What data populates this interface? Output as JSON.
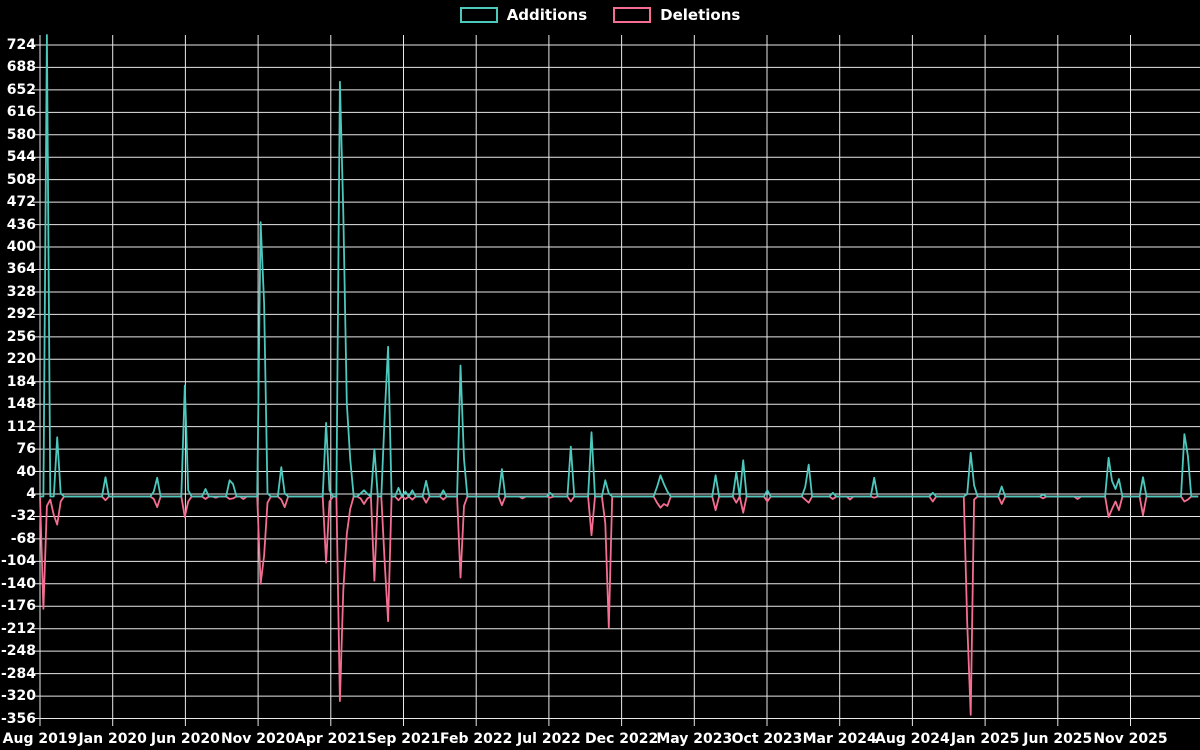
{
  "legend": {
    "additions_label": "Additions",
    "deletions_label": "Deletions"
  },
  "colors": {
    "background": "#000000",
    "text": "#ffffff",
    "grid": "#e8e8e8",
    "additions": "#4cc8bd",
    "deletions": "#f56e91"
  },
  "chart_data": {
    "type": "line",
    "title": "",
    "xlabel": "",
    "ylabel": "",
    "legend_position": "top-center",
    "grid": true,
    "x_tick_labels": [
      "Aug 2019",
      "Jan 2020",
      "Jun 2020",
      "Nov 2020",
      "Apr 2021",
      "Sep 2021",
      "Feb 2022",
      "Jul 2022",
      "Dec 2022",
      "May 2023",
      "Oct 2023",
      "Mar 2024",
      "Aug 2024",
      "Jan 2025",
      "Jun 2025",
      "Nov 2025"
    ],
    "y_ticks": [
      724,
      688,
      652,
      616,
      580,
      544,
      508,
      472,
      436,
      400,
      364,
      328,
      292,
      256,
      220,
      184,
      148,
      112,
      76,
      40,
      4,
      -32,
      -68,
      -104,
      -140,
      -176,
      -212,
      -248,
      -284,
      -320,
      -356
    ],
    "y_axis_range": [
      -368,
      740
    ],
    "series": [
      {
        "name": "Additions",
        "color": "#4cc8bd"
      },
      {
        "name": "Deletions",
        "color": "#f56e91"
      }
    ],
    "total_weeks": 337,
    "weeks_are": "weekly points from Aug 2019; unlisted weeks are [additions=0, deletions=0]",
    "points_w_add_del": [
      [
        1,
        0,
        -180
      ],
      [
        2,
        740,
        -15
      ],
      [
        3,
        0,
        -5
      ],
      [
        4,
        0,
        -30
      ],
      [
        5,
        95,
        -45
      ],
      [
        6,
        5,
        -8
      ],
      [
        19,
        31,
        -6
      ],
      [
        33,
        8,
        -4
      ],
      [
        34,
        30,
        -17
      ],
      [
        42,
        178,
        -33
      ],
      [
        43,
        10,
        -8
      ],
      [
        48,
        12,
        -4
      ],
      [
        51,
        0,
        -2
      ],
      [
        55,
        26,
        -4
      ],
      [
        56,
        20,
        -3
      ],
      [
        59,
        0,
        -4
      ],
      [
        64,
        440,
        -140
      ],
      [
        65,
        310,
        -95
      ],
      [
        66,
        5,
        -10
      ],
      [
        70,
        47,
        -5
      ],
      [
        71,
        5,
        -17
      ],
      [
        83,
        118,
        -106
      ],
      [
        84,
        10,
        -8
      ],
      [
        87,
        665,
        -328
      ],
      [
        88,
        455,
        -150
      ],
      [
        89,
        150,
        -60
      ],
      [
        90,
        60,
        -20
      ],
      [
        93,
        5,
        -3
      ],
      [
        94,
        10,
        -12
      ],
      [
        95,
        4,
        -3
      ],
      [
        97,
        76,
        -135
      ],
      [
        100,
        130,
        -106
      ],
      [
        101,
        240,
        -200
      ],
      [
        104,
        14,
        -6
      ],
      [
        106,
        8,
        -4
      ],
      [
        108,
        10,
        -5
      ],
      [
        112,
        25,
        -10
      ],
      [
        117,
        10,
        -5
      ],
      [
        122,
        210,
        -130
      ],
      [
        123,
        60,
        -15
      ],
      [
        134,
        44,
        -14
      ],
      [
        140,
        0,
        -3
      ],
      [
        148,
        6,
        -2
      ],
      [
        154,
        80,
        -8
      ],
      [
        160,
        103,
        -62
      ],
      [
        164,
        26,
        -43
      ],
      [
        165,
        5,
        -210
      ],
      [
        179,
        15,
        -10
      ],
      [
        180,
        34,
        -18
      ],
      [
        181,
        20,
        -12
      ],
      [
        182,
        8,
        -15
      ],
      [
        196,
        34,
        -22
      ],
      [
        202,
        39,
        -10
      ],
      [
        204,
        58,
        -26
      ],
      [
        211,
        10,
        -8
      ],
      [
        222,
        15,
        -5
      ],
      [
        223,
        51,
        -10
      ],
      [
        230,
        6,
        -4
      ],
      [
        235,
        0,
        -5
      ],
      [
        242,
        30,
        -2
      ],
      [
        259,
        6,
        -8
      ],
      [
        269,
        4,
        -202
      ],
      [
        270,
        70,
        -350
      ],
      [
        271,
        18,
        -5
      ],
      [
        279,
        16,
        -12
      ],
      [
        291,
        3,
        -3
      ],
      [
        301,
        0,
        -4
      ],
      [
        310,
        62,
        -33
      ],
      [
        311,
        25,
        -20
      ],
      [
        312,
        12,
        -8
      ],
      [
        313,
        28,
        -22
      ],
      [
        320,
        31,
        -30
      ],
      [
        332,
        100,
        -8
      ],
      [
        333,
        65,
        -5
      ]
    ]
  }
}
